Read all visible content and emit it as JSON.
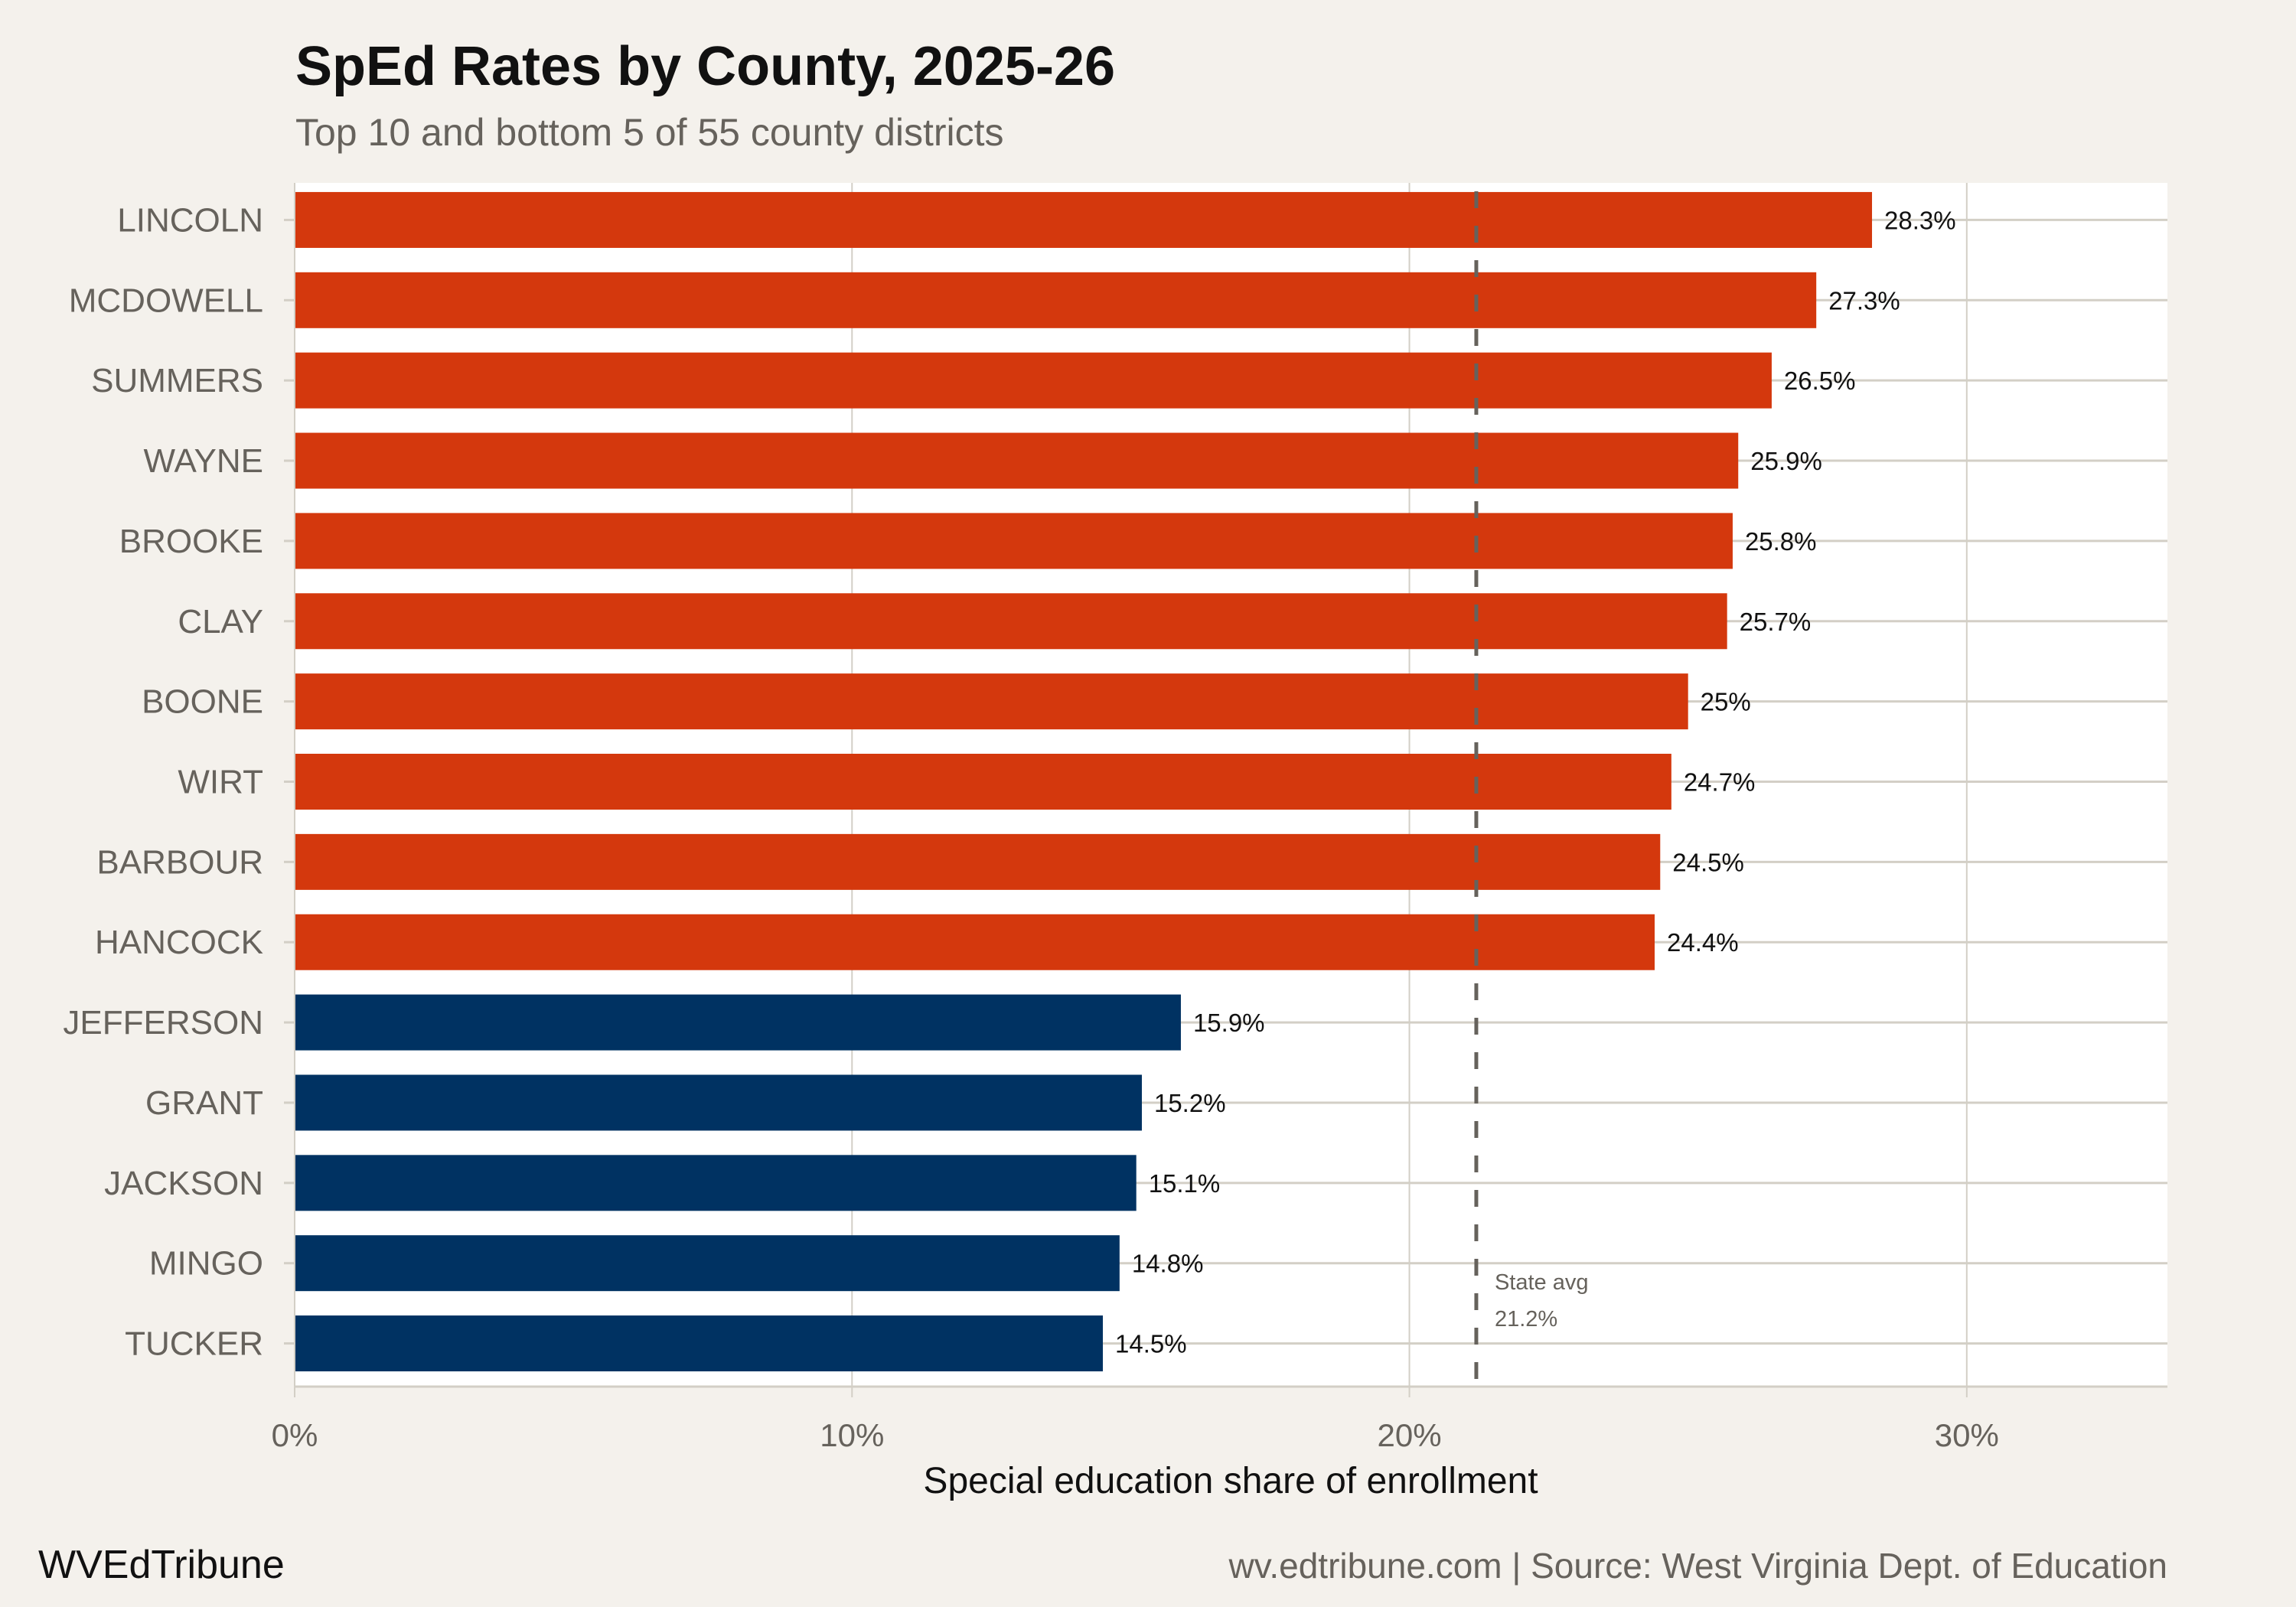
{
  "chart_data": {
    "type": "bar",
    "orientation": "horizontal",
    "title": "SpEd Rates by County, 2025-26",
    "subtitle": "Top 10 and bottom 5 of 55 county districts",
    "xlabel": "Special education share of enrollment",
    "ylabel": "",
    "xlim": [
      0,
      33.6
    ],
    "x_ticks": [
      0,
      10,
      20,
      30
    ],
    "x_tick_labels": [
      "0%",
      "10%",
      "20%",
      "30%"
    ],
    "grid": true,
    "categories": [
      "LINCOLN",
      "MCDOWELL",
      "SUMMERS",
      "WAYNE",
      "BROOKE",
      "CLAY",
      "BOONE",
      "WIRT",
      "BARBOUR",
      "HANCOCK",
      "JEFFERSON",
      "GRANT",
      "JACKSON",
      "MINGO",
      "TUCKER"
    ],
    "values": [
      28.3,
      27.3,
      26.5,
      25.9,
      25.8,
      25.7,
      25,
      24.7,
      24.5,
      24.4,
      15.9,
      15.2,
      15.1,
      14.8,
      14.5
    ],
    "value_labels": [
      "28.3%",
      "27.3%",
      "26.5%",
      "25.9%",
      "25.8%",
      "25.7%",
      "25%",
      "24.7%",
      "24.5%",
      "24.4%",
      "15.9%",
      "15.2%",
      "15.1%",
      "14.8%",
      "14.5%"
    ],
    "groups": [
      "top",
      "top",
      "top",
      "top",
      "top",
      "top",
      "top",
      "top",
      "top",
      "top",
      "bottom",
      "bottom",
      "bottom",
      "bottom",
      "bottom"
    ],
    "colors": {
      "top": "#d4380d",
      "bottom": "#003262",
      "reference_line": "#66625c"
    },
    "reference_line": {
      "value": 21.2,
      "label": "State avg",
      "value_label": "21.2%",
      "style": "dashed"
    }
  },
  "footer": {
    "brand": "WVEdTribune",
    "source": "wv.edtribune.com | Source: West Virginia Dept. of Education"
  }
}
